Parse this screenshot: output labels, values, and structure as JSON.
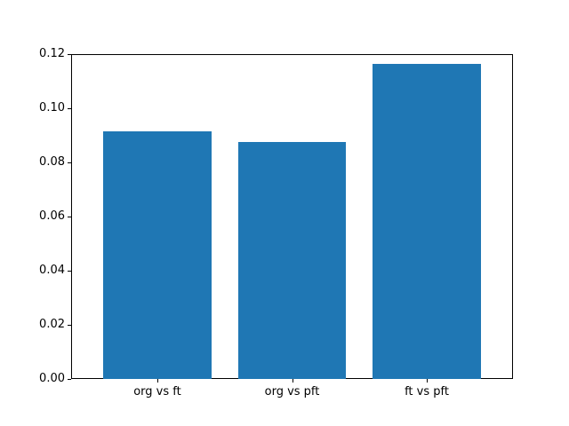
{
  "chart_data": {
    "type": "bar",
    "title": "",
    "xlabel": "",
    "ylabel": "",
    "categories": [
      "org vs ft",
      "org vs pft",
      "ft vs pft"
    ],
    "values": [
      0.0915,
      0.0875,
      0.1165
    ],
    "ylim": [
      0,
      0.12
    ],
    "ytick_labels": [
      "0.00",
      "0.02",
      "0.04",
      "0.06",
      "0.08",
      "0.10",
      "0.12"
    ],
    "ytick_values": [
      0,
      0.02,
      0.04,
      0.06,
      0.08,
      0.1,
      0.12
    ],
    "grid": false,
    "legend": false,
    "bar_width_fraction": 0.8,
    "colors": {
      "bar": "#1f77b4",
      "spine": "#000000",
      "text": "#000000",
      "background": "#ffffff"
    }
  }
}
